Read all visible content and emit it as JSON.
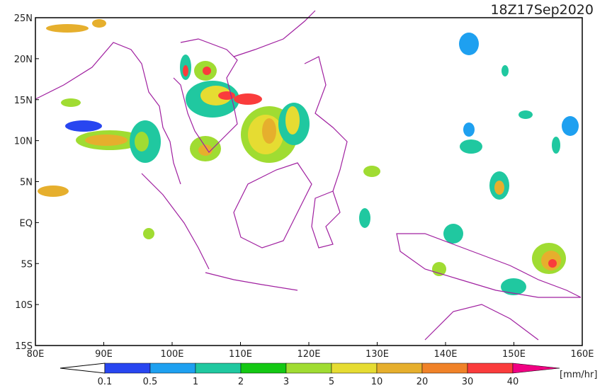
{
  "map": {
    "title": "18Z17Sep2020",
    "xlim": [
      80,
      160
    ],
    "ylim": [
      -15,
      25
    ],
    "xticks": [
      {
        "value": 80,
        "label": "80E"
      },
      {
        "value": 90,
        "label": "90E"
      },
      {
        "value": 100,
        "label": "100E"
      },
      {
        "value": 110,
        "label": "110E"
      },
      {
        "value": 120,
        "label": "120E"
      },
      {
        "value": 130,
        "label": "130E"
      },
      {
        "value": 140,
        "label": "140E"
      },
      {
        "value": 150,
        "label": "150E"
      },
      {
        "value": 160,
        "label": "160E"
      }
    ],
    "yticks": [
      {
        "value": 25,
        "label": "25N"
      },
      {
        "value": 20,
        "label": "20N"
      },
      {
        "value": 15,
        "label": "15N"
      },
      {
        "value": 10,
        "label": "10N"
      },
      {
        "value": 5,
        "label": "5N"
      },
      {
        "value": 0,
        "label": "EQ"
      },
      {
        "value": -5,
        "label": "5S"
      },
      {
        "value": -10,
        "label": "10S"
      },
      {
        "value": -15,
        "label": "15S"
      }
    ],
    "colorbar": {
      "levels": [
        0.1,
        0.5,
        1,
        2,
        3,
        5,
        10,
        20,
        30,
        40
      ],
      "colors": [
        "#2846f0",
        "#1ea0f0",
        "#20c8a0",
        "#14c814",
        "#a0dc32",
        "#e6dc32",
        "#e6af2d",
        "#f08228",
        "#fa3c3c",
        "#f00082"
      ],
      "unit": "[mm/hr]"
    }
  }
}
